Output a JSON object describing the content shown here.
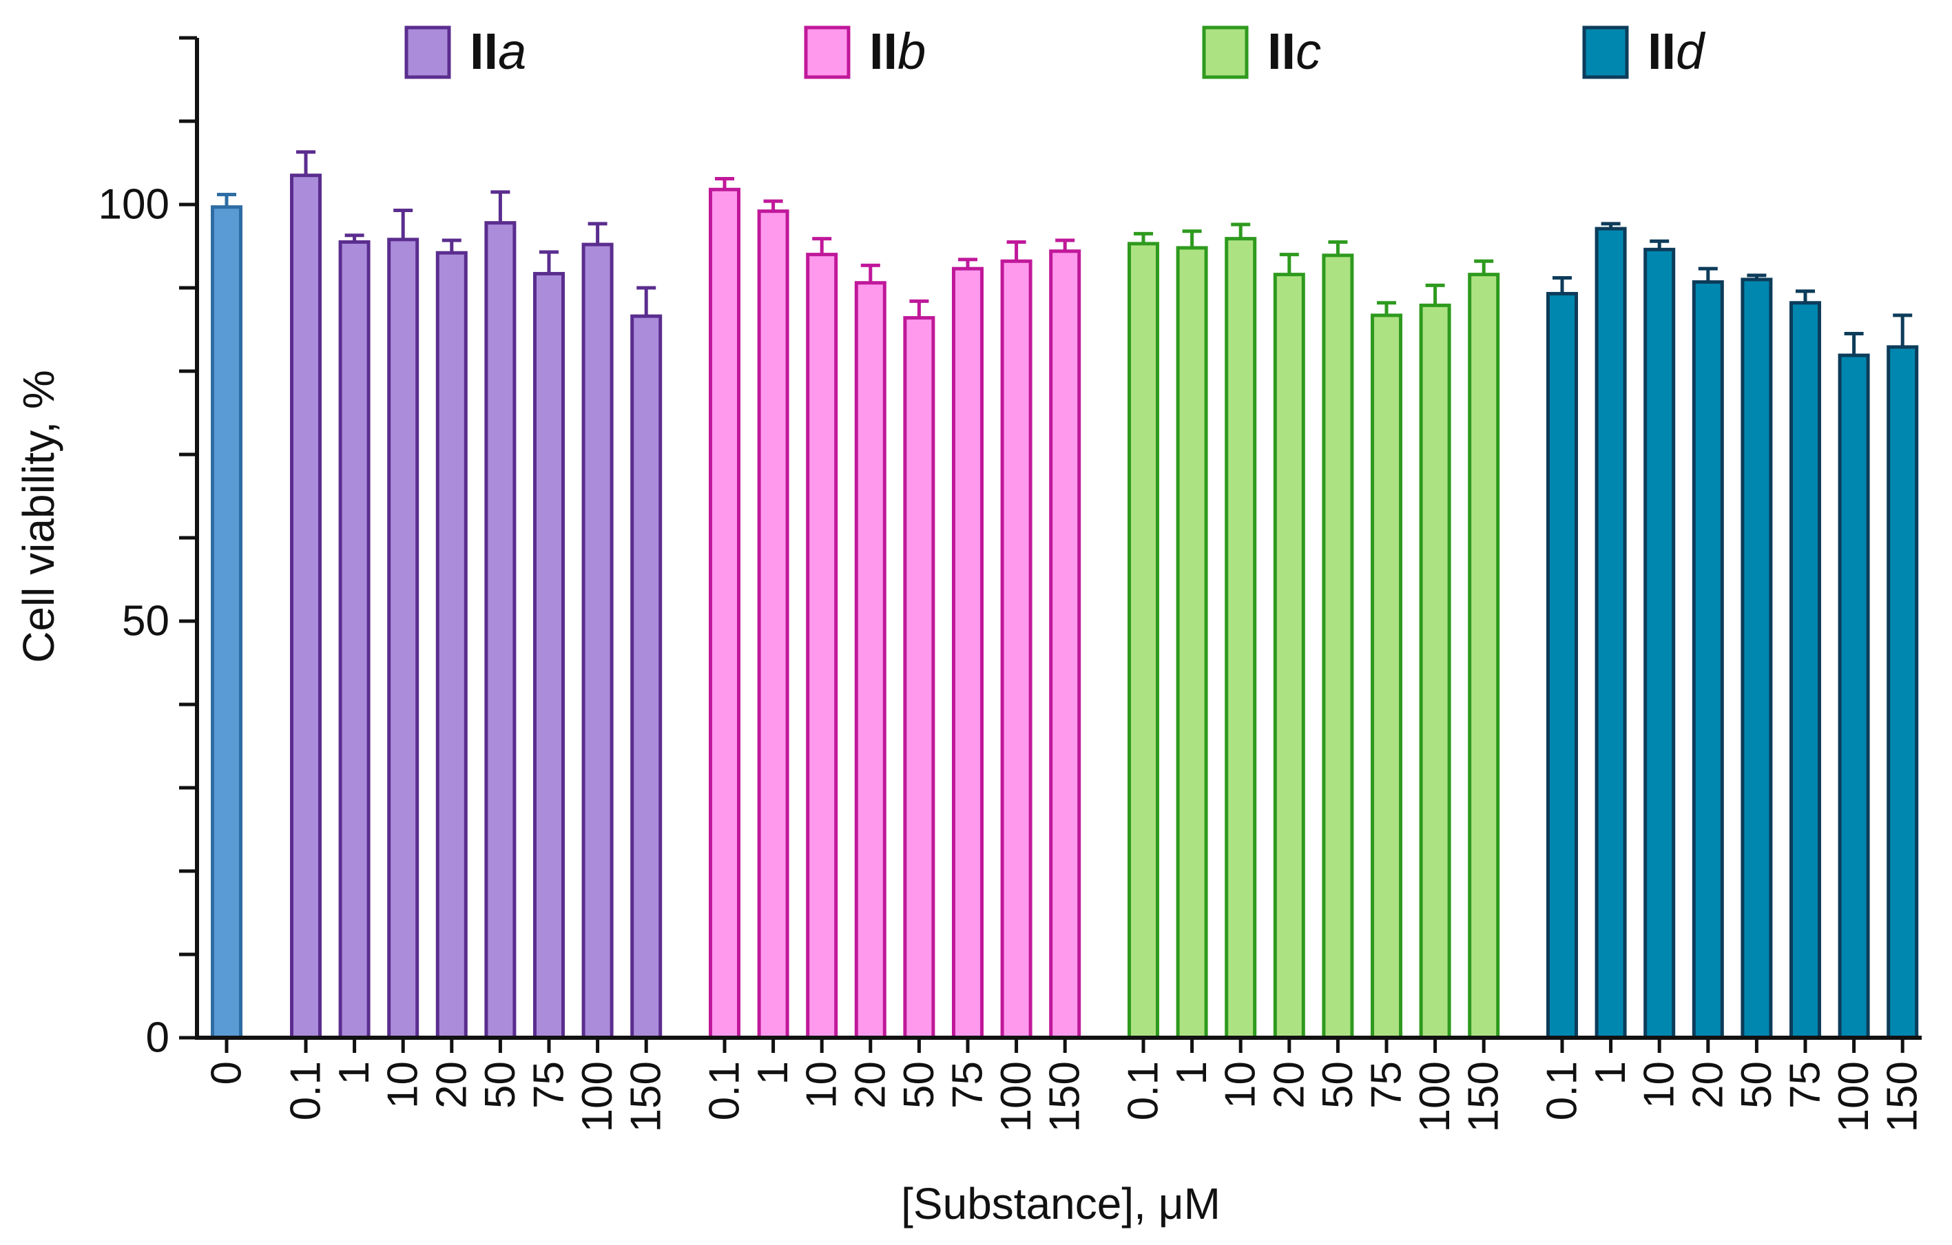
{
  "chart_data": {
    "type": "bar",
    "ylabel": "Cell viability, %",
    "xlabel": "[Substance], μM",
    "ylim": [
      0,
      120
    ],
    "yticks": [
      0,
      50,
      100
    ],
    "grid": false,
    "legend_position": "top",
    "control": {
      "label": "0",
      "value": 99.7,
      "error": 1.5,
      "color": "#5b9bd5",
      "stroke": "#2e6da4"
    },
    "categories": [
      "0.1",
      "1",
      "10",
      "20",
      "50",
      "75",
      "100",
      "150"
    ],
    "series": [
      {
        "name": "IIa",
        "name_main": "II",
        "name_suffix": "a",
        "color": "#ab8cdb",
        "stroke": "#5a2d8e",
        "values": [
          103.5,
          95.5,
          95.8,
          94.2,
          97.8,
          91.7,
          95.2,
          86.6
        ],
        "errors": [
          2.8,
          0.8,
          3.5,
          1.5,
          3.7,
          2.6,
          2.5,
          3.4
        ]
      },
      {
        "name": "IIb",
        "name_main": "II",
        "name_suffix": "b",
        "color": "#ff99ee",
        "stroke": "#c0189a",
        "values": [
          101.8,
          99.2,
          94.0,
          90.6,
          86.4,
          92.3,
          93.2,
          94.4
        ],
        "errors": [
          1.3,
          1.2,
          1.9,
          2.1,
          2.0,
          1.1,
          2.3,
          1.3
        ]
      },
      {
        "name": "IIc",
        "name_main": "II",
        "name_suffix": "c",
        "color": "#ade282",
        "stroke": "#2e9a1e",
        "values": [
          95.3,
          94.8,
          95.9,
          91.6,
          93.9,
          86.7,
          87.9,
          91.6
        ],
        "errors": [
          1.2,
          2.0,
          1.7,
          2.4,
          1.6,
          1.5,
          2.4,
          1.6
        ]
      },
      {
        "name": "IId",
        "name_main": "II",
        "name_suffix": "d",
        "color": "#0087af",
        "stroke": "#0d3c5a",
        "values": [
          89.3,
          97.1,
          94.6,
          90.7,
          91.0,
          88.2,
          81.9,
          82.9
        ],
        "errors": [
          1.9,
          0.6,
          1.0,
          1.6,
          0.5,
          1.4,
          2.6,
          3.8
        ]
      }
    ]
  }
}
